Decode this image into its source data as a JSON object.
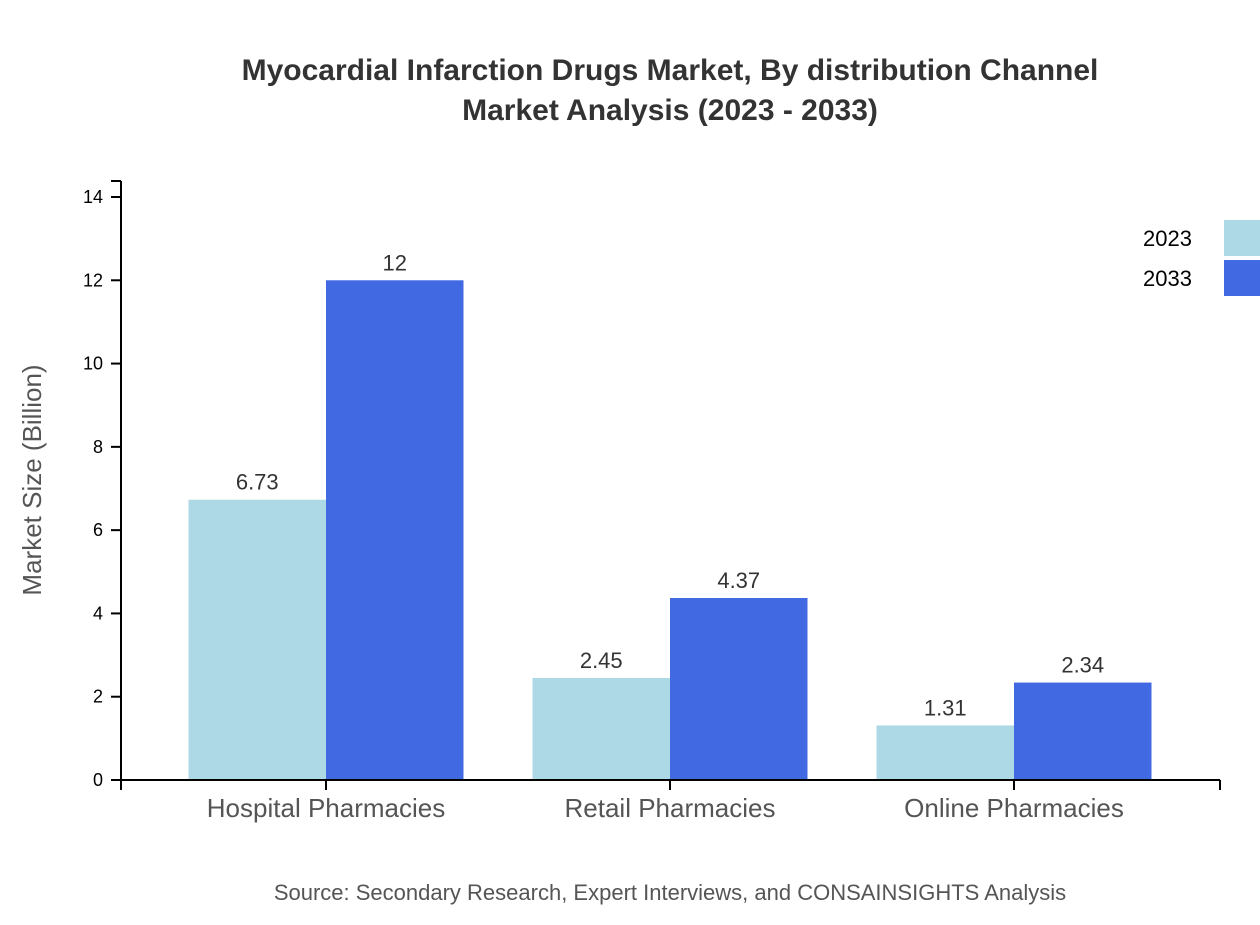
{
  "chart_data": {
    "type": "bar",
    "title_line1": "Myocardial Infarction Drugs Market, By distribution Channel",
    "title_line2": "Market Analysis (2023 - 2033)",
    "xlabel": "",
    "ylabel": "Market Size (Billion)",
    "ylim": [
      0,
      14
    ],
    "yticks": [
      "0",
      "2",
      "4",
      "6",
      "8",
      "10",
      "12",
      "14"
    ],
    "categories": [
      "Hospital Pharmacies",
      "Retail Pharmacies",
      "Online Pharmacies"
    ],
    "series": [
      {
        "name": "2023",
        "color": "#add8e6",
        "values": [
          6.73,
          2.45,
          1.31
        ],
        "labels": [
          "6.73",
          "2.45",
          "1.31"
        ]
      },
      {
        "name": "2033",
        "color": "#4169e1",
        "values": [
          12,
          4.37,
          2.34
        ],
        "labels": [
          "12",
          "4.37",
          "2.34"
        ]
      }
    ],
    "legend_position": "top-right",
    "grid": false,
    "source": "Source: Secondary Research, Expert Interviews, and CONSAINSIGHTS Analysis"
  }
}
